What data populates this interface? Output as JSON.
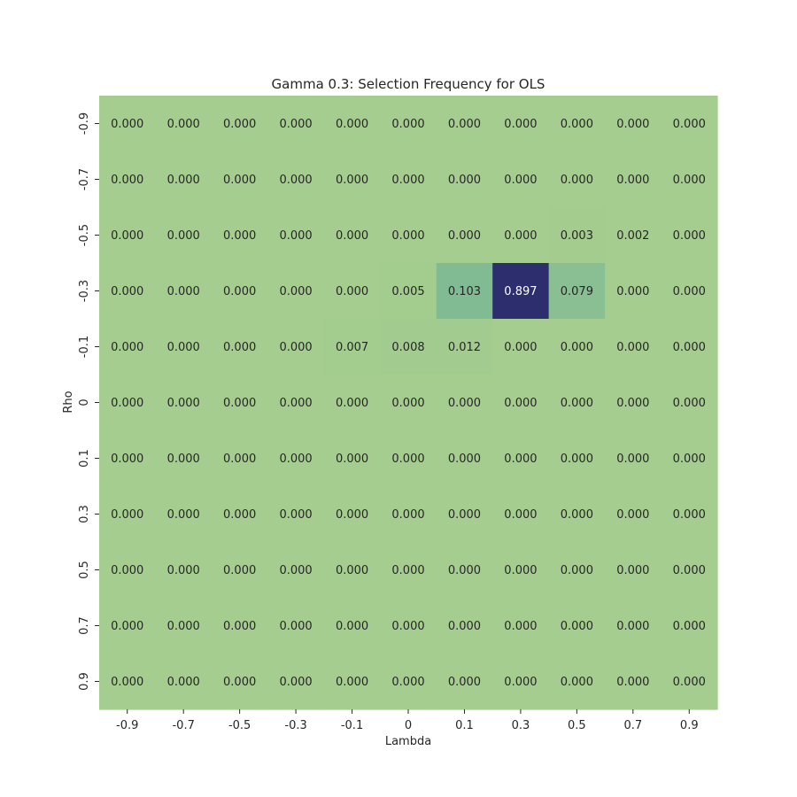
{
  "chart_data": {
    "type": "heatmap",
    "title": "Gamma 0.3: Selection Frequency for OLS",
    "xlabel": "Lambda",
    "ylabel": "Rho",
    "x_categories": [
      "-0.9",
      "-0.7",
      "-0.5",
      "-0.3",
      "-0.1",
      "0",
      "0.1",
      "0.3",
      "0.5",
      "0.7",
      "0.9"
    ],
    "y_categories": [
      "-0.9",
      "-0.7",
      "-0.5",
      "-0.3",
      "-0.1",
      "0",
      "0.1",
      "0.3",
      "0.5",
      "0.7",
      "0.9"
    ],
    "values": [
      [
        0.0,
        0.0,
        0.0,
        0.0,
        0.0,
        0.0,
        0.0,
        0.0,
        0.0,
        0.0,
        0.0
      ],
      [
        0.0,
        0.0,
        0.0,
        0.0,
        0.0,
        0.0,
        0.0,
        0.0,
        0.0,
        0.0,
        0.0
      ],
      [
        0.0,
        0.0,
        0.0,
        0.0,
        0.0,
        0.0,
        0.0,
        0.0,
        0.003,
        0.002,
        0.0
      ],
      [
        0.0,
        0.0,
        0.0,
        0.0,
        0.0,
        0.005,
        0.103,
        0.897,
        0.079,
        0.0,
        0.0
      ],
      [
        0.0,
        0.0,
        0.0,
        0.0,
        0.007,
        0.008,
        0.012,
        0.0,
        0.0,
        0.0,
        0.0
      ],
      [
        0.0,
        0.0,
        0.0,
        0.0,
        0.0,
        0.0,
        0.0,
        0.0,
        0.0,
        0.0,
        0.0
      ],
      [
        0.0,
        0.0,
        0.0,
        0.0,
        0.0,
        0.0,
        0.0,
        0.0,
        0.0,
        0.0,
        0.0
      ],
      [
        0.0,
        0.0,
        0.0,
        0.0,
        0.0,
        0.0,
        0.0,
        0.0,
        0.0,
        0.0,
        0.0
      ],
      [
        0.0,
        0.0,
        0.0,
        0.0,
        0.0,
        0.0,
        0.0,
        0.0,
        0.0,
        0.0,
        0.0
      ],
      [
        0.0,
        0.0,
        0.0,
        0.0,
        0.0,
        0.0,
        0.0,
        0.0,
        0.0,
        0.0,
        0.0
      ],
      [
        0.0,
        0.0,
        0.0,
        0.0,
        0.0,
        0.0,
        0.0,
        0.0,
        0.0,
        0.0,
        0.0
      ]
    ],
    "value_format": "0.000",
    "colorbar": false,
    "colors": {
      "low": "#a5cd8f",
      "mid": "#7fba93",
      "high": "#2c2e6e",
      "text_dark": "#262626",
      "text_light": "#ffffff"
    },
    "vmin": 0,
    "vmax": 0.897
  }
}
